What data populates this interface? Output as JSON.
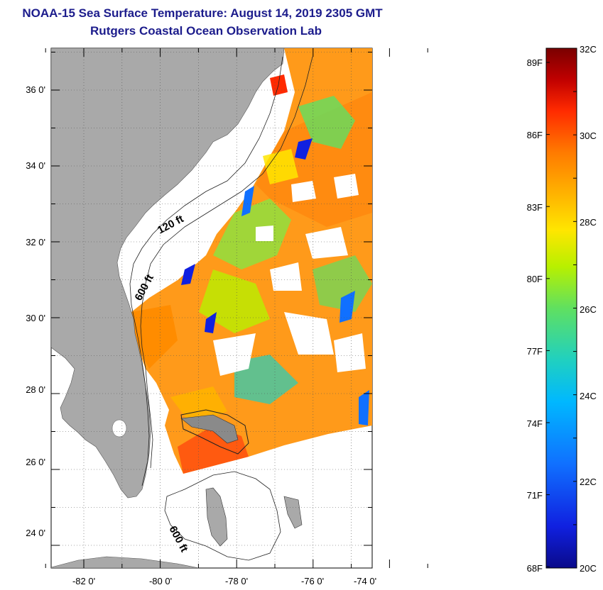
{
  "header": {
    "title": "NOAA-15 Sea Surface Temperature:  August 14, 2019 2305 GMT",
    "subtitle": "Rutgers Coastal Ocean Observation Lab"
  },
  "map": {
    "lat_labels": [
      "36 0'",
      "34 0'",
      "32 0'",
      "30 0'",
      "28 0'",
      "26 0'",
      "24 0'"
    ],
    "lon_labels": [
      "-82 0'",
      "-80 0'",
      "-78 0'",
      "-76 0'",
      "-74 0'"
    ],
    "contour_labels": [
      "120 ft",
      "600 ft",
      "600 ft"
    ]
  },
  "colorbar": {
    "celsius_labels": [
      "32C",
      "30C",
      "28C",
      "26C",
      "24C",
      "22C",
      "20C"
    ],
    "fahrenheit_labels": [
      "89F",
      "86F",
      "83F",
      "80F",
      "77F",
      "74F",
      "71F",
      "68F"
    ],
    "colors": [
      "#7a0000",
      "#c00000",
      "#ff2a00",
      "#ff7a00",
      "#ffb300",
      "#ffe600",
      "#b8f000",
      "#60e060",
      "#20d0c0",
      "#00b8ff",
      "#1070ff",
      "#1020e0",
      "#0a0a8a"
    ]
  },
  "colors": {
    "title": "#1c1c8c",
    "land": "#a9a9a9",
    "water_bg": "#ffffff"
  }
}
